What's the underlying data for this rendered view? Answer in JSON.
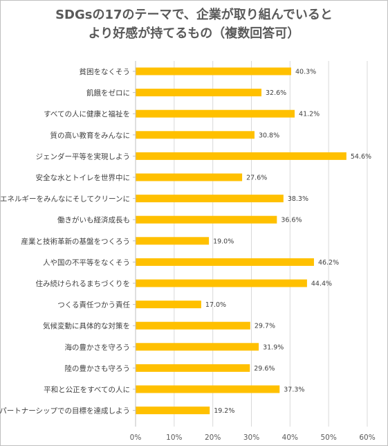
{
  "chart_data": {
    "type": "bar",
    "orientation": "horizontal",
    "title_lines": [
      "SDGsの17のテーマで、企業が取り組んでいると",
      "より好感が持てるもの（複数回答可）"
    ],
    "categories": [
      "貧困をなくそう",
      "飢餓をゼロに",
      "すべての人に健康と福祉を",
      "質の高い教育をみんなに",
      "ジェンダー平等を実現しよう",
      "安全な水とトイレを世界中に",
      "エネルギーをみんなにそしてクリーンに",
      "働きがいも経済成長も",
      "産業と技術革新の基盤をつくろう",
      "人や国の不平等をなくそう",
      "住み続けられるまちづくりを",
      "つくる責任つかう責任",
      "気候変動に具体的な対策を",
      "海の豊かさを守ろう",
      "陸の豊かさも守ろう",
      "平和と公正をすべての人に",
      "パートナーシップでの目標を達成しよう"
    ],
    "values": [
      40.3,
      32.6,
      41.2,
      30.8,
      54.6,
      27.6,
      38.3,
      36.6,
      19.0,
      46.2,
      44.4,
      17.0,
      29.7,
      31.9,
      29.6,
      37.3,
      19.2
    ],
    "value_labels": [
      "40.3%",
      "32.6%",
      "41.2%",
      "30.8%",
      "54.6%",
      "27.6%",
      "38.3%",
      "36.6%",
      "19.0%",
      "46.2%",
      "44.4%",
      "17.0%",
      "29.7%",
      "31.9%",
      "29.6%",
      "37.3%",
      "19.2%"
    ],
    "xlim": [
      0,
      60
    ],
    "x_ticks": [
      0,
      10,
      20,
      30,
      40,
      50,
      60
    ],
    "x_tick_labels": [
      "0%",
      "10%",
      "20%",
      "30%",
      "40%",
      "50%",
      "60%"
    ],
    "grid": true,
    "legend": "none",
    "colors": {
      "bar": "#FFC000",
      "grid": "#D9D9D9",
      "axis": "#BFBFBF",
      "text": "#404040"
    }
  }
}
